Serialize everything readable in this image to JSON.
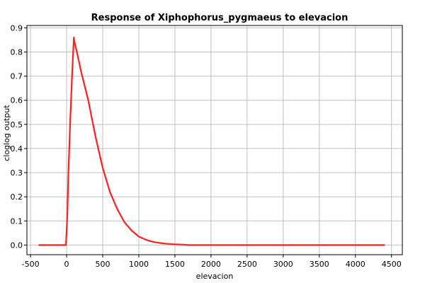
{
  "chart_data": {
    "type": "line",
    "title": "Response of Xiphophorus_pygmaeus to elevacion",
    "xlabel": "elevacion",
    "ylabel": "cloglog output",
    "xlim": [
      -550,
      4650
    ],
    "ylim": [
      -0.04,
      0.91
    ],
    "xticks": [
      "-500",
      "0",
      "500",
      "1000",
      "1500",
      "2000",
      "2500",
      "3000",
      "3500",
      "4000",
      "4500"
    ],
    "yticks": [
      "0.0",
      "0.1",
      "0.2",
      "0.3",
      "0.4",
      "0.5",
      "0.6",
      "0.7",
      "0.8",
      "0.9"
    ],
    "grid": true,
    "legend": "none",
    "series": [
      {
        "color": "#ff2020",
        "x": [
          -380,
          -200,
          -100,
          -10,
          0,
          10,
          25,
          50,
          75,
          100,
          110,
          150,
          200,
          300,
          400,
          500,
          600,
          700,
          800,
          900,
          1000,
          1100,
          1200,
          1300,
          1400,
          1500,
          1600,
          1700,
          2000,
          3000,
          4000,
          4400
        ],
        "y": [
          0.0,
          0.0,
          0.0,
          0.0,
          0.06,
          0.13,
          0.3,
          0.52,
          0.7,
          0.86,
          0.84,
          0.79,
          0.72,
          0.6,
          0.45,
          0.32,
          0.22,
          0.15,
          0.095,
          0.06,
          0.035,
          0.022,
          0.013,
          0.008,
          0.005,
          0.003,
          0.002,
          0.0,
          0.0,
          0.0,
          0.0,
          0.0
        ]
      }
    ]
  }
}
